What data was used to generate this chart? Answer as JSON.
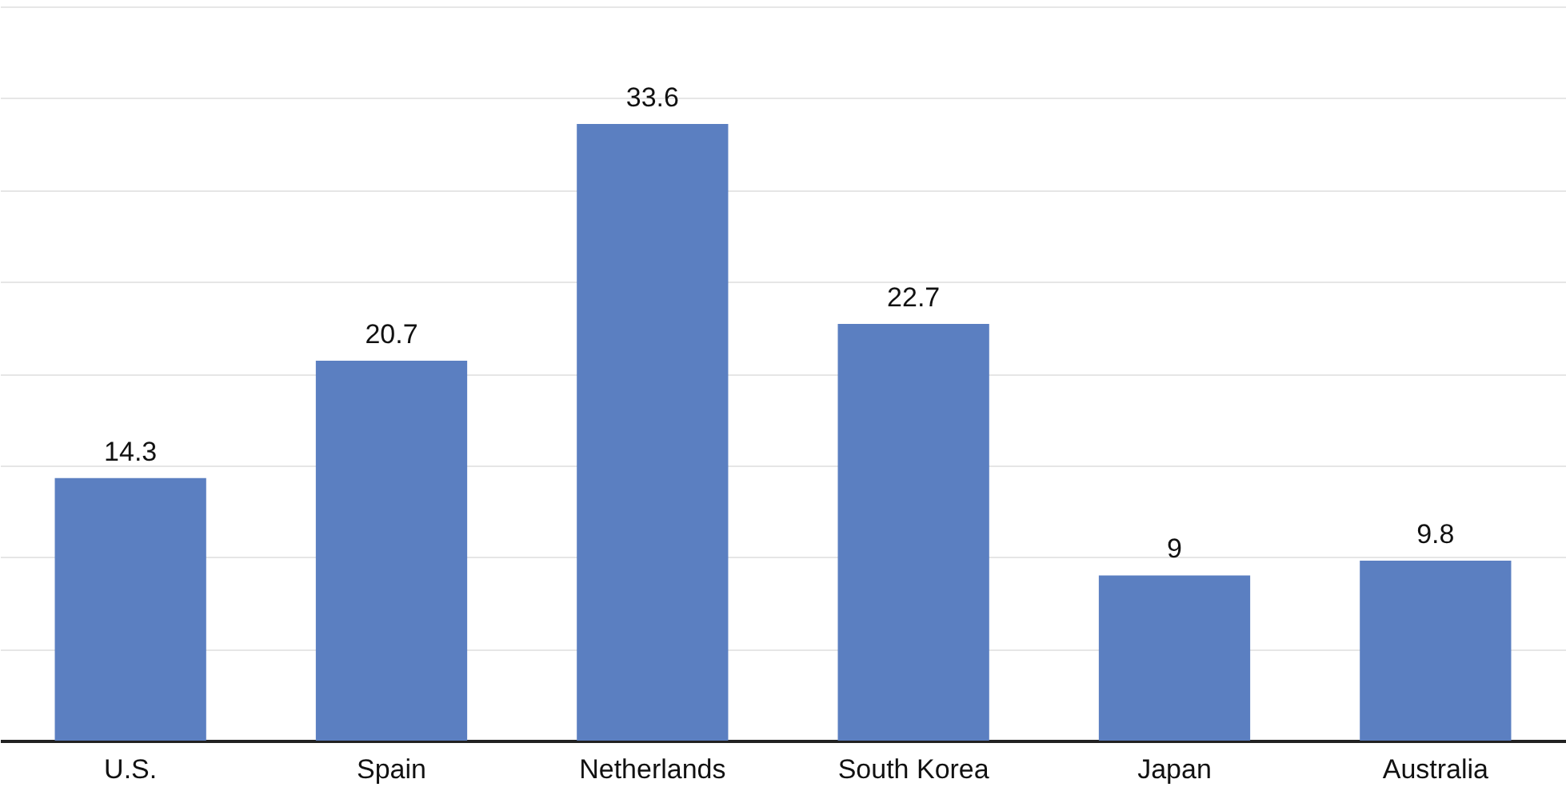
{
  "chart_data": {
    "type": "bar",
    "categories": [
      "U.S.",
      "Spain",
      "Netherlands",
      "South Korea",
      "Japan",
      "Australia"
    ],
    "values": [
      14.3,
      20.7,
      33.6,
      22.7,
      9,
      9.8
    ],
    "color": "#5b7fc1",
    "data_labels": true,
    "grid": "y",
    "tick_labels": "x",
    "ylim": [
      0,
      40
    ],
    "yticks": [
      {
        "value": 0,
        "label": null
      },
      {
        "value": 5,
        "label": null
      },
      {
        "value": 10,
        "label": null
      },
      {
        "value": 15,
        "label": null
      },
      {
        "value": 20,
        "label": null
      },
      {
        "value": 25,
        "label": null
      },
      {
        "value": 30,
        "label": null
      },
      {
        "value": 35,
        "label": null
      },
      {
        "value": 40,
        "label": null
      }
    ]
  }
}
